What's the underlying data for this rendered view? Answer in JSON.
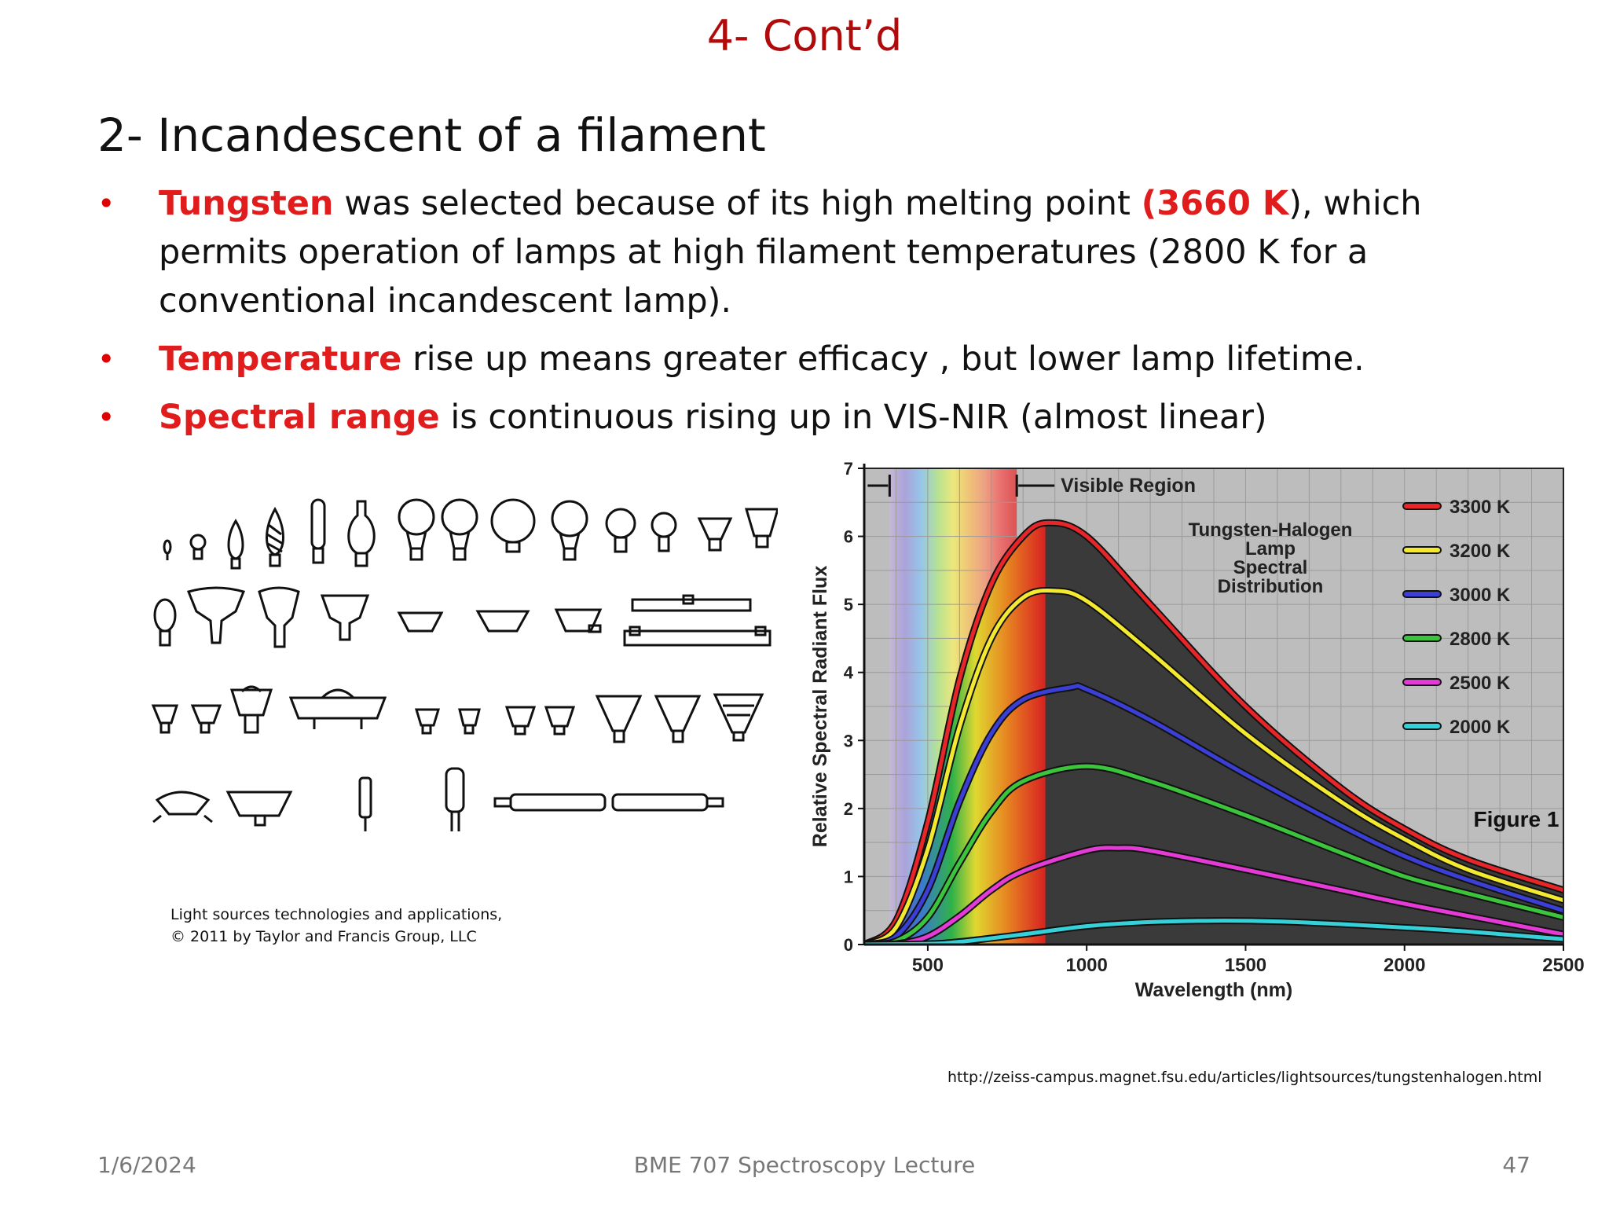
{
  "slide": {
    "title": "4- Cont’d",
    "heading": "2- Incandescent of a filament"
  },
  "bullets": [
    {
      "kw": "Tungsten",
      "text1": " was selected because of its high melting point ",
      "kw2": "(3660 K",
      "text2": "), which permits operation of lamps at high filament temperatures (2800 K for a conventional incandescent lamp)."
    },
    {
      "kw": "Temperature",
      "text1": " rise up means greater efficacy , but lower lamp lifetime."
    },
    {
      "kw": "Spectral range",
      "text1": " is continuous rising up  in VIS-NIR (almost linear)"
    }
  ],
  "lamp_caption": {
    "line1": "Light sources technologies and applications,",
    "line2": "© 2011 by Taylor and Francis Group, LLC"
  },
  "url": "http://zeiss-campus.magnet.fsu.edu/articles/lightsources/tungstenhalogen.html",
  "footer": {
    "date": "1/6/2024",
    "course": "BME 707 Spectroscopy Lecture",
    "page": "47"
  },
  "chart_data": {
    "type": "line",
    "title": "Tungsten-Halogen Lamp Spectral Distribution",
    "figure_label": "Figure 1",
    "annotation": "Visible Region",
    "xlabel": "Wavelength (nm)",
    "ylabel": "Relative Spectral Radiant Flux",
    "xlim": [
      300,
      2500
    ],
    "ylim": [
      0,
      7
    ],
    "xticks": [
      500,
      1000,
      1500,
      2000,
      2500
    ],
    "yticks": [
      0,
      1,
      2,
      3,
      4,
      5,
      6,
      7
    ],
    "grid": true,
    "legend_position": "top-right",
    "series": [
      {
        "name": "3300 K",
        "color": "#e8262a",
        "x": [
          300,
          400,
          500,
          600,
          700,
          800,
          880,
          1000,
          1200,
          1500,
          1800,
          2000,
          2200,
          2500
        ],
        "y": [
          0,
          0.35,
          1.8,
          3.9,
          5.3,
          6.0,
          6.2,
          6.0,
          5.0,
          3.5,
          2.3,
          1.7,
          1.25,
          0.8
        ]
      },
      {
        "name": "3200 K",
        "color": "#f2e930",
        "x": [
          300,
          400,
          500,
          600,
          700,
          800,
          900,
          1000,
          1200,
          1500,
          1800,
          2000,
          2200,
          2500
        ],
        "y": [
          0,
          0.25,
          1.4,
          3.2,
          4.5,
          5.1,
          5.2,
          5.05,
          4.3,
          3.1,
          2.1,
          1.55,
          1.1,
          0.65
        ]
      },
      {
        "name": "3000 K",
        "color": "#3b3fd6",
        "x": [
          300,
          400,
          500,
          600,
          700,
          800,
          950,
          1000,
          1200,
          1500,
          1800,
          2000,
          2200,
          2500
        ],
        "y": [
          0,
          0.12,
          0.8,
          2.1,
          3.1,
          3.6,
          3.78,
          3.75,
          3.3,
          2.5,
          1.75,
          1.3,
          0.95,
          0.5
        ]
      },
      {
        "name": "2800 K",
        "color": "#3cc43c",
        "x": [
          300,
          400,
          500,
          600,
          700,
          800,
          1000,
          1200,
          1500,
          1800,
          2000,
          2200,
          2500
        ],
        "y": [
          0,
          0.05,
          0.4,
          1.2,
          1.95,
          2.4,
          2.62,
          2.4,
          1.9,
          1.35,
          1.0,
          0.75,
          0.4
        ]
      },
      {
        "name": "2500 K",
        "color": "#e43ad6",
        "x": [
          300,
          400,
          500,
          600,
          700,
          800,
          1000,
          1100,
          1200,
          1500,
          1800,
          2000,
          2200,
          2500
        ],
        "y": [
          0,
          0.01,
          0.12,
          0.42,
          0.8,
          1.08,
          1.38,
          1.42,
          1.38,
          1.1,
          0.8,
          0.6,
          0.42,
          0.15
        ]
      },
      {
        "name": "2000 K",
        "color": "#36d0d8",
        "x": [
          300,
          500,
          600,
          800,
          1000,
          1200,
          1400,
          1600,
          1800,
          2000,
          2200,
          2500
        ],
        "y": [
          0,
          0.01,
          0.04,
          0.15,
          0.27,
          0.33,
          0.35,
          0.34,
          0.3,
          0.25,
          0.19,
          0.08
        ]
      }
    ]
  }
}
